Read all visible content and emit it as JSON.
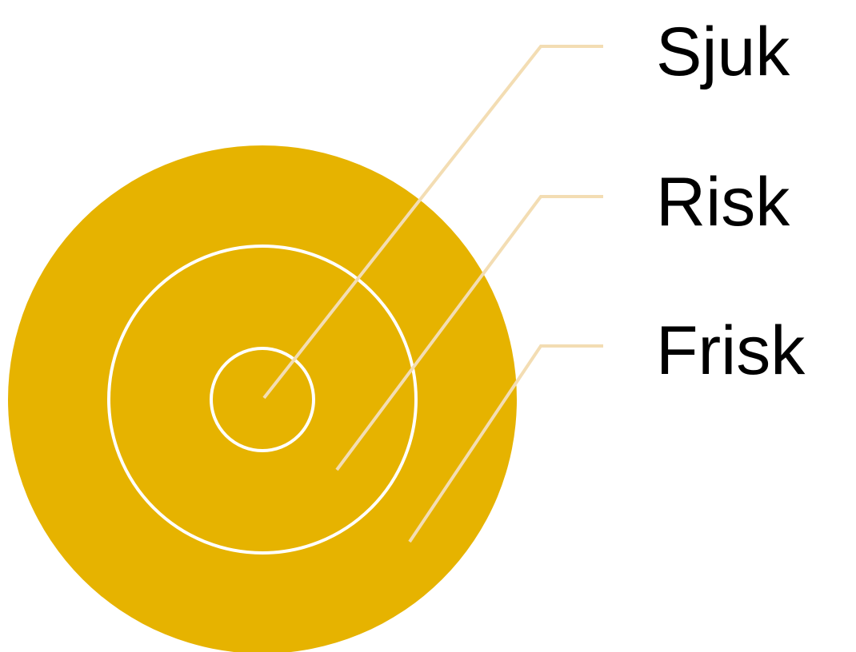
{
  "diagram": {
    "labels": {
      "inner": "Sjuk",
      "middle": "Risk",
      "outer": "Frisk"
    },
    "colors": {
      "disc": "#E6B300",
      "ring_stroke": "#FFFFFF",
      "leader_line": "#F3DDB3",
      "text": "#000000"
    }
  }
}
